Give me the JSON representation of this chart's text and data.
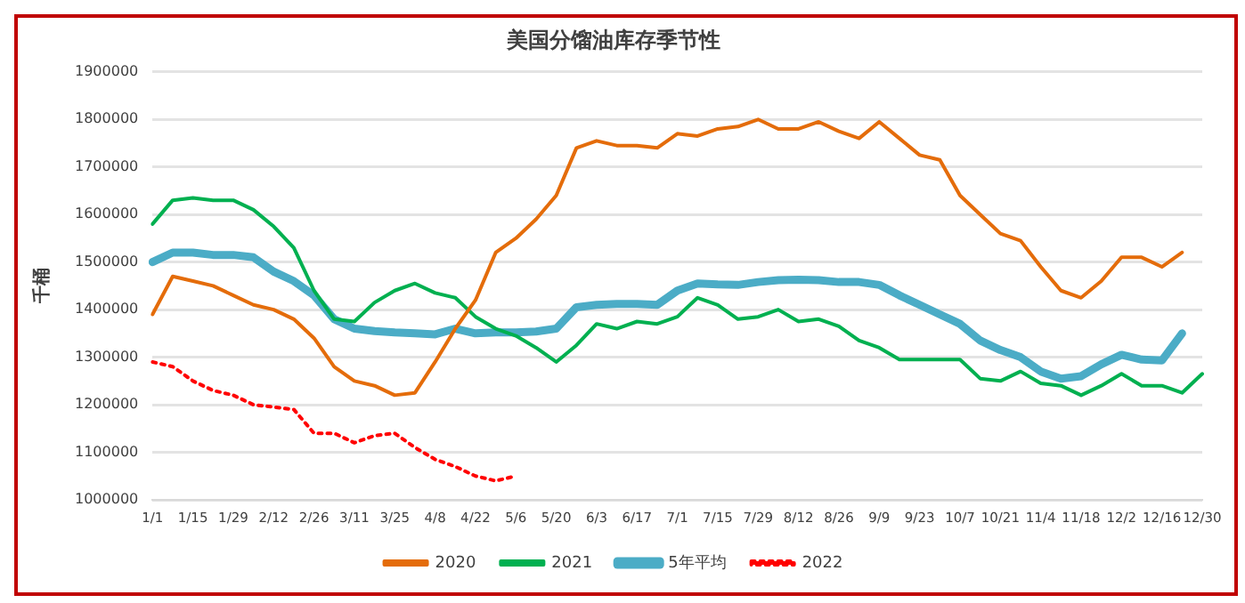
{
  "chart_data": {
    "type": "line",
    "title": "美国分馏油库存季节性",
    "ylabel": "千桶",
    "categories": [
      "1/1",
      null,
      "1/15",
      null,
      "1/29",
      null,
      "2/12",
      null,
      "2/26",
      null,
      "3/11",
      null,
      "3/25",
      null,
      "4/8",
      null,
      "4/22",
      null,
      "5/6",
      null,
      "5/20",
      null,
      "6/3",
      null,
      "6/17",
      null,
      "7/1",
      null,
      "7/15",
      null,
      "7/29",
      null,
      "8/12",
      null,
      "8/26",
      null,
      "9/9",
      null,
      "9/23",
      null,
      "10/7",
      null,
      "10/21",
      null,
      "11/4",
      null,
      "11/18",
      null,
      "12/2",
      null,
      "12/16",
      null,
      "12/30"
    ],
    "series": [
      {
        "name": "2020",
        "color": "#e46c0a",
        "line_style": "solid",
        "values": [
          1390000,
          1470000,
          1460000,
          1450000,
          1430000,
          1410000,
          1400000,
          1380000,
          1340000,
          1280000,
          1250000,
          1240000,
          1220000,
          1225000,
          1290000,
          1360000,
          1420000,
          1520000,
          1550000,
          1590000,
          1640000,
          1740000,
          1755000,
          1745000,
          1745000,
          1740000,
          1770000,
          1765000,
          1780000,
          1785000,
          1800000,
          1780000,
          1780000,
          1795000,
          1775000,
          1760000,
          1795000,
          1760000,
          1725000,
          1715000,
          1640000,
          1600000,
          1560000,
          1545000,
          1490000,
          1440000,
          1425000,
          1460000,
          1510000,
          1510000,
          1490000,
          1520000,
          null
        ]
      },
      {
        "name": "2021",
        "color": "#00b050",
        "line_style": "solid",
        "values": [
          1580000,
          1630000,
          1635000,
          1630000,
          1630000,
          1610000,
          1575000,
          1530000,
          1440000,
          1380000,
          1375000,
          1415000,
          1440000,
          1455000,
          1435000,
          1425000,
          1385000,
          1360000,
          1345000,
          1320000,
          1290000,
          1325000,
          1370000,
          1360000,
          1375000,
          1370000,
          1385000,
          1425000,
          1410000,
          1380000,
          1385000,
          1400000,
          1375000,
          1380000,
          1365000,
          1335000,
          1320000,
          1295000,
          1295000,
          1295000,
          1295000,
          1255000,
          1250000,
          1270000,
          1245000,
          1240000,
          1220000,
          1240000,
          1265000,
          1240000,
          1240000,
          1225000,
          1265000
        ]
      },
      {
        "name": "5年平均",
        "color": "#4bacc6",
        "line_style": "solid",
        "values": [
          1500000,
          1520000,
          1520000,
          1515000,
          1515000,
          1510000,
          1480000,
          1460000,
          1430000,
          1380000,
          1360000,
          1355000,
          1352000,
          1350000,
          1348000,
          1360000,
          1350000,
          1352000,
          1352000,
          1354000,
          1360000,
          1405000,
          1410000,
          1412000,
          1412000,
          1410000,
          1440000,
          1455000,
          1453000,
          1452000,
          1458000,
          1462000,
          1463000,
          1462000,
          1458000,
          1458000,
          1452000,
          1430000,
          1410000,
          1390000,
          1370000,
          1335000,
          1315000,
          1300000,
          1270000,
          1255000,
          1260000,
          1285000,
          1305000,
          1295000,
          1293000,
          1350000,
          null
        ]
      },
      {
        "name": "2022",
        "color": "#ff0000",
        "line_style": "dotted",
        "values": [
          1290000,
          1280000,
          1250000,
          1230000,
          1220000,
          1200000,
          1195000,
          1190000,
          1140000,
          1140000,
          1120000,
          1135000,
          1140000,
          1110000,
          1085000,
          1070000,
          1050000,
          1040000,
          1050000,
          null,
          null,
          null,
          null,
          null,
          null,
          null,
          null,
          null,
          null,
          null,
          null,
          null,
          null,
          null,
          null,
          null,
          null,
          null,
          null,
          null,
          null,
          null,
          null,
          null,
          null,
          null,
          null,
          null,
          null,
          null,
          null,
          null,
          null
        ]
      }
    ],
    "ylim": [
      1000000,
      1900000
    ],
    "yticks": [
      1000000,
      1100000,
      1200000,
      1300000,
      1400000,
      1500000,
      1600000,
      1700000,
      1800000,
      1900000
    ],
    "grid": "y",
    "legend": "bottom",
    "marker": "none"
  }
}
